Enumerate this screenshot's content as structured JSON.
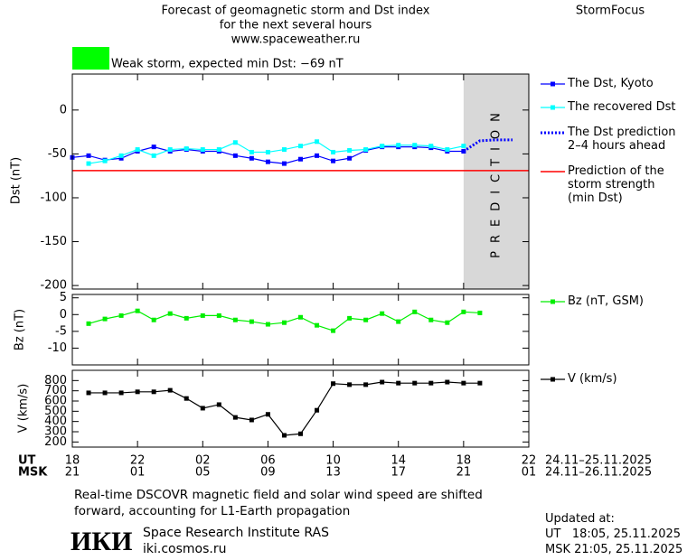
{
  "header": {
    "title": [
      "Forecast of geomagnetic storm and Dst index",
      "for the next several hours",
      "www.spaceweather.ru"
    ],
    "brand": "StormFocus"
  },
  "status": {
    "text": "Weak storm, expected min Dst: −69 nT",
    "color": "#00ff00"
  },
  "chart_data": [
    {
      "type": "line",
      "y_label": "Dst (nT)",
      "x": [
        0,
        1,
        2,
        3,
        4,
        5,
        6,
        7,
        8,
        9,
        10,
        11,
        12,
        13,
        14,
        15,
        16,
        17,
        18,
        19,
        20,
        21,
        22,
        23,
        24,
        25,
        26,
        27
      ],
      "xlim": [
        0,
        28
      ],
      "xticks": [
        0,
        4,
        8,
        12,
        16,
        20,
        24,
        28
      ],
      "ylim": [
        -204,
        41
      ],
      "yticks": [
        0,
        -50,
        -100,
        -150,
        -200
      ],
      "series": [
        {
          "name": "The Dst, Kyoto",
          "color": "#0000ff",
          "line_style": "solid",
          "markers": true,
          "values": [
            -54,
            -52,
            -57,
            -55,
            -47,
            -42,
            -47,
            -45,
            -47,
            -47,
            -52,
            -55,
            -59,
            -61,
            -56,
            -52,
            -58,
            -55,
            -46,
            -42,
            -42,
            -42,
            -43,
            -47,
            -47,
            null,
            null,
            null
          ]
        },
        {
          "name": "The recovered Dst",
          "color": "#00ffff",
          "line_style": "solid",
          "markers": true,
          "values": [
            null,
            -61,
            -58,
            -52,
            -45,
            -52,
            -45,
            -44,
            -45,
            -45,
            -37,
            -48,
            -48,
            -45,
            -41,
            -36,
            -48,
            -46,
            -45,
            -41,
            -40,
            -40,
            -41,
            -45,
            -41,
            null,
            null,
            null
          ]
        },
        {
          "name": "The Dst prediction 2–4 hours ahead",
          "color": "#0000ff",
          "line_style": "dotted",
          "markers": false,
          "values": [
            null,
            null,
            null,
            null,
            null,
            null,
            null,
            null,
            null,
            null,
            null,
            null,
            null,
            null,
            null,
            null,
            null,
            null,
            null,
            null,
            null,
            null,
            null,
            null,
            -47,
            -35,
            -34,
            -34
          ]
        }
      ],
      "min_dst": {
        "name": "Prediction of the storm strength (min Dst)",
        "color": "#ff0000",
        "value": -69
      },
      "prediction_region": {
        "label": "PREDICTION",
        "xlim": [
          24,
          28
        ],
        "color": "#d8d8d8"
      }
    },
    {
      "type": "line",
      "y_label": "Bz (nT)",
      "x": [
        1,
        2,
        3,
        4,
        5,
        6,
        7,
        8,
        9,
        10,
        11,
        12,
        13,
        14,
        15,
        16,
        17,
        18,
        19,
        20,
        21,
        22,
        23,
        24,
        25
      ],
      "xlim": [
        0,
        28
      ],
      "xticks": [
        0,
        4,
        8,
        12,
        16,
        20,
        24,
        28
      ],
      "ylim": [
        -15,
        6
      ],
      "yticks": [
        5,
        0,
        -5,
        -10
      ],
      "series": [
        {
          "name": "Bz (nT, GSM)",
          "color": "#00ee00",
          "line_style": "solid",
          "markers": true,
          "values": [
            -2.7,
            -1.3,
            -0.3,
            1.1,
            -1.6,
            0.3,
            -1.1,
            -0.3,
            -0.3,
            -1.6,
            -2.1,
            -2.9,
            -2.4,
            -0.8,
            -3.2,
            -4.8,
            -1.1,
            -1.6,
            0.3,
            -2.1,
            0.8,
            -1.6,
            -2.4,
            0.8,
            0.5
          ]
        }
      ]
    },
    {
      "type": "line",
      "y_label": "V (km/s)",
      "x": [
        1,
        2,
        3,
        4,
        5,
        6,
        7,
        8,
        9,
        10,
        11,
        12,
        13,
        14,
        15,
        16,
        17,
        18,
        19,
        20,
        21,
        22,
        23,
        24,
        25
      ],
      "xlim": [
        0,
        28
      ],
      "xticks": [
        {
          "value": 0,
          "label": "18"
        },
        {
          "value": 4,
          "label": "22"
        },
        {
          "value": 8,
          "label": "02"
        },
        {
          "value": 12,
          "label": "06"
        },
        {
          "value": 16,
          "label": "10"
        },
        {
          "value": 20,
          "label": "14"
        },
        {
          "value": 24,
          "label": "18"
        },
        {
          "value": 28,
          "label": "22"
        }
      ],
      "xticks_msk": [
        "21",
        "01",
        "05",
        "09",
        "13",
        "17",
        "21",
        "01"
      ],
      "time_rows": [
        {
          "label": "UT",
          "range": "24.11–25.11.2025"
        },
        {
          "label": "MSK",
          "range": "24.11–26.11.2025"
        }
      ],
      "ylim": [
        150,
        900
      ],
      "yticks": [
        800,
        700,
        600,
        500,
        400,
        300,
        200
      ],
      "series": [
        {
          "name": "V (km/s)",
          "color": "#000000",
          "line_style": "solid",
          "markers": true,
          "values": [
            680,
            680,
            680,
            690,
            690,
            705,
            625,
            530,
            565,
            440,
            415,
            470,
            265,
            280,
            510,
            770,
            760,
            760,
            785,
            775,
            775,
            775,
            785,
            775,
            775
          ]
        }
      ]
    }
  ],
  "footer": {
    "note": "Real-time DSCOVR magnetic field and solar wind speed are shifted forward, accounting for L1-Earth propagation",
    "logo": "ИКИ",
    "institute": "Space Research Institute RAS",
    "site": "iki.cosmos.ru",
    "updated": [
      "Updated at:",
      "UT   18:05, 25.11.2025",
      "MSK 21:05, 25.11.2025"
    ]
  }
}
